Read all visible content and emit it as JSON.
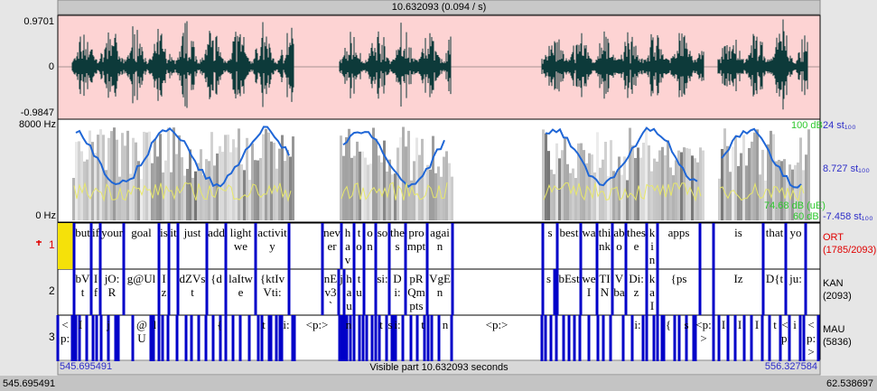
{
  "top_bar": "10.632093 (0.094 / s)",
  "waveform": {
    "max": "0.9701",
    "zero": "0",
    "min": "-0.9847"
  },
  "spectrogram": {
    "freq_max": "8000 Hz",
    "freq_min": "0 Hz",
    "intensity_max": "100 dB",
    "pitch_max": "24 st₁₀₀",
    "pitch_cursor": "8.727 st₁₀₀",
    "intensity_cursor": "74.68 dB (uE)",
    "pitch_min": "-7.458 st₁₀₀",
    "intensity_min": "60 dB"
  },
  "tiers": [
    {
      "number": "1",
      "name": "ORT",
      "count": "(1785/2093)",
      "intervals": [
        "but",
        "if",
        "your",
        "goal",
        "is",
        "it",
        "just",
        "add",
        "lightwe",
        "activity",
        "never",
        "hav",
        "to",
        "on",
        "so",
        "thes",
        "prompt",
        "again",
        "s",
        "best",
        "wa",
        "think",
        "abo",
        "these",
        "kina",
        "apps",
        "is",
        "that",
        "yo"
      ]
    },
    {
      "number": "2",
      "name": "KAN",
      "count": "(2093)",
      "intervals": [
        "bVt",
        "If",
        "jO:R",
        "g@Ul",
        "Iz",
        "dZVst",
        "{d",
        "laItwe",
        "{ktIvVti:",
        "nEv3`",
        "j",
        "hau",
        "tu",
        "si:",
        "Di:",
        "pRQmpts",
        "VgEn",
        "s",
        "bEst",
        "weI",
        "TIN",
        "Vba",
        "Di:z",
        "kaI",
        "{ps",
        "Iz",
        "D{t",
        "ju:"
      ]
    },
    {
      "number": "3",
      "name": "MAU",
      "count": "(5836)",
      "intervals": [
        "<p:",
        "I",
        "j",
        "@U",
        "l",
        "{",
        "t",
        "i:",
        "<p:>",
        "n",
        "t",
        "s",
        "i:",
        "t",
        "n",
        "<p:>",
        "i:",
        "{",
        "s",
        "<p:>",
        "I",
        "I",
        "I",
        "t",
        "<p:",
        "i",
        "<p:>"
      ]
    }
  ],
  "footer": {
    "window_start": "545.695491",
    "visible": "Visible part 10.632093 seconds",
    "window_end": "556.327584",
    "total_start": "545.695491",
    "total_end": "62.538697"
  }
}
